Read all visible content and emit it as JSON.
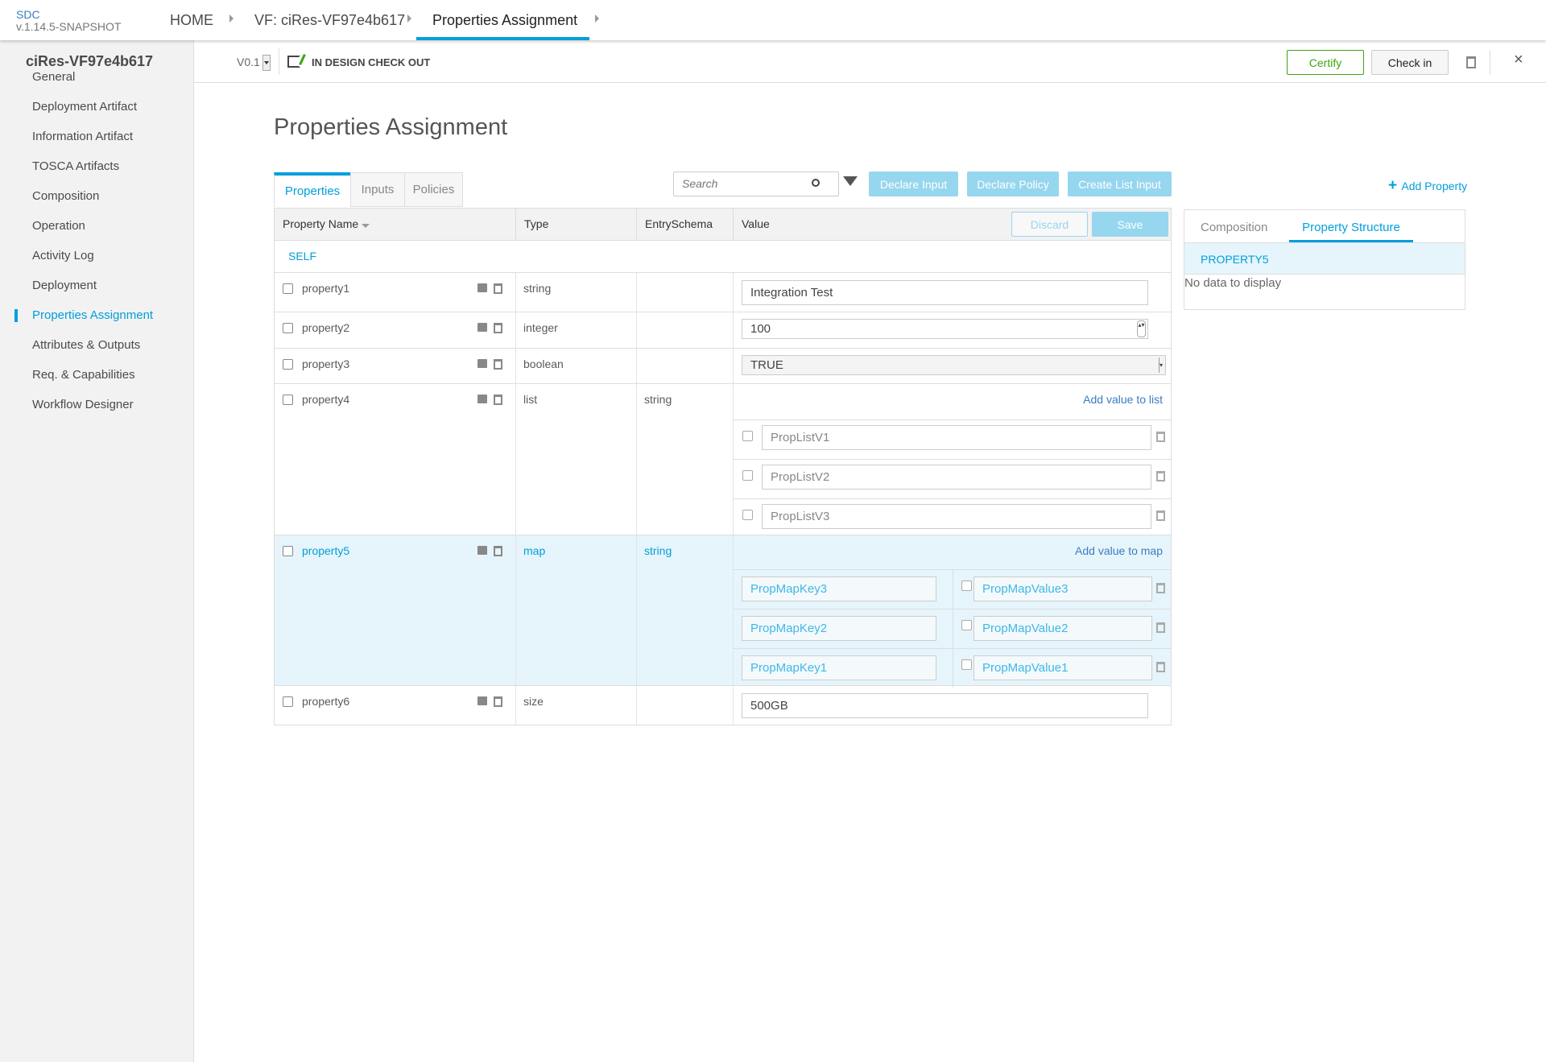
{
  "app": {
    "name": "SDC",
    "version": "v.1.14.5-SNAPSHOT"
  },
  "breadcrumb": [
    "HOME",
    "VF: ciRes-VF97e4b617",
    "Properties Assignment"
  ],
  "resource": {
    "name": "ciRes-VF97e4b617",
    "version": "V0.1",
    "status": "IN DESIGN CHECK OUT"
  },
  "actions": {
    "certify": "Certify",
    "checkin": "Check in"
  },
  "sidebar": {
    "items": [
      "General",
      "Deployment Artifact",
      "Information Artifact",
      "TOSCA Artifacts",
      "Composition",
      "Operation",
      "Activity Log",
      "Deployment",
      "Properties Assignment",
      "Attributes & Outputs",
      "Req. & Capabilities",
      "Workflow Designer"
    ],
    "active": "Properties Assignment"
  },
  "page": {
    "title": "Properties Assignment"
  },
  "tabs": [
    "Properties",
    "Inputs",
    "Policies"
  ],
  "search": {
    "placeholder": "Search"
  },
  "toolbar": {
    "declare_input": "Declare Input",
    "declare_policy": "Declare Policy",
    "create_list_input": "Create List Input",
    "add_property": "Add Property"
  },
  "table": {
    "headers": [
      "Property Name",
      "Type",
      "EntrySchema",
      "Value"
    ],
    "discard": "Discard",
    "save": "Save",
    "group": "SELF",
    "rows": [
      {
        "name": "property1",
        "type": "string",
        "schema": "",
        "value": "Integration Test"
      },
      {
        "name": "property2",
        "type": "integer",
        "schema": "",
        "value": "100"
      },
      {
        "name": "property3",
        "type": "boolean",
        "schema": "",
        "value": "TRUE"
      },
      {
        "name": "property4",
        "type": "list",
        "schema": "string",
        "add_label": "Add value to list",
        "items": [
          "PropListV1",
          "PropListV2",
          "PropListV3"
        ]
      },
      {
        "name": "property5",
        "type": "map",
        "schema": "string",
        "add_label": "Add value to map",
        "entries": [
          [
            "PropMapKey3",
            "PropMapValue3"
          ],
          [
            "PropMapKey2",
            "PropMapValue2"
          ],
          [
            "PropMapKey1",
            "PropMapValue1"
          ]
        ]
      },
      {
        "name": "property6",
        "type": "size",
        "schema": "",
        "value": "500GB"
      }
    ]
  },
  "right_panel": {
    "tabs": [
      "Composition",
      "Property Structure"
    ],
    "active_tab": "Property Structure",
    "selected": "PROPERTY5",
    "empty": "No data to display"
  },
  "colors": {
    "accent": "#009fdb",
    "certify": "#3aa60e",
    "selected_row": "#e6f5fb"
  }
}
